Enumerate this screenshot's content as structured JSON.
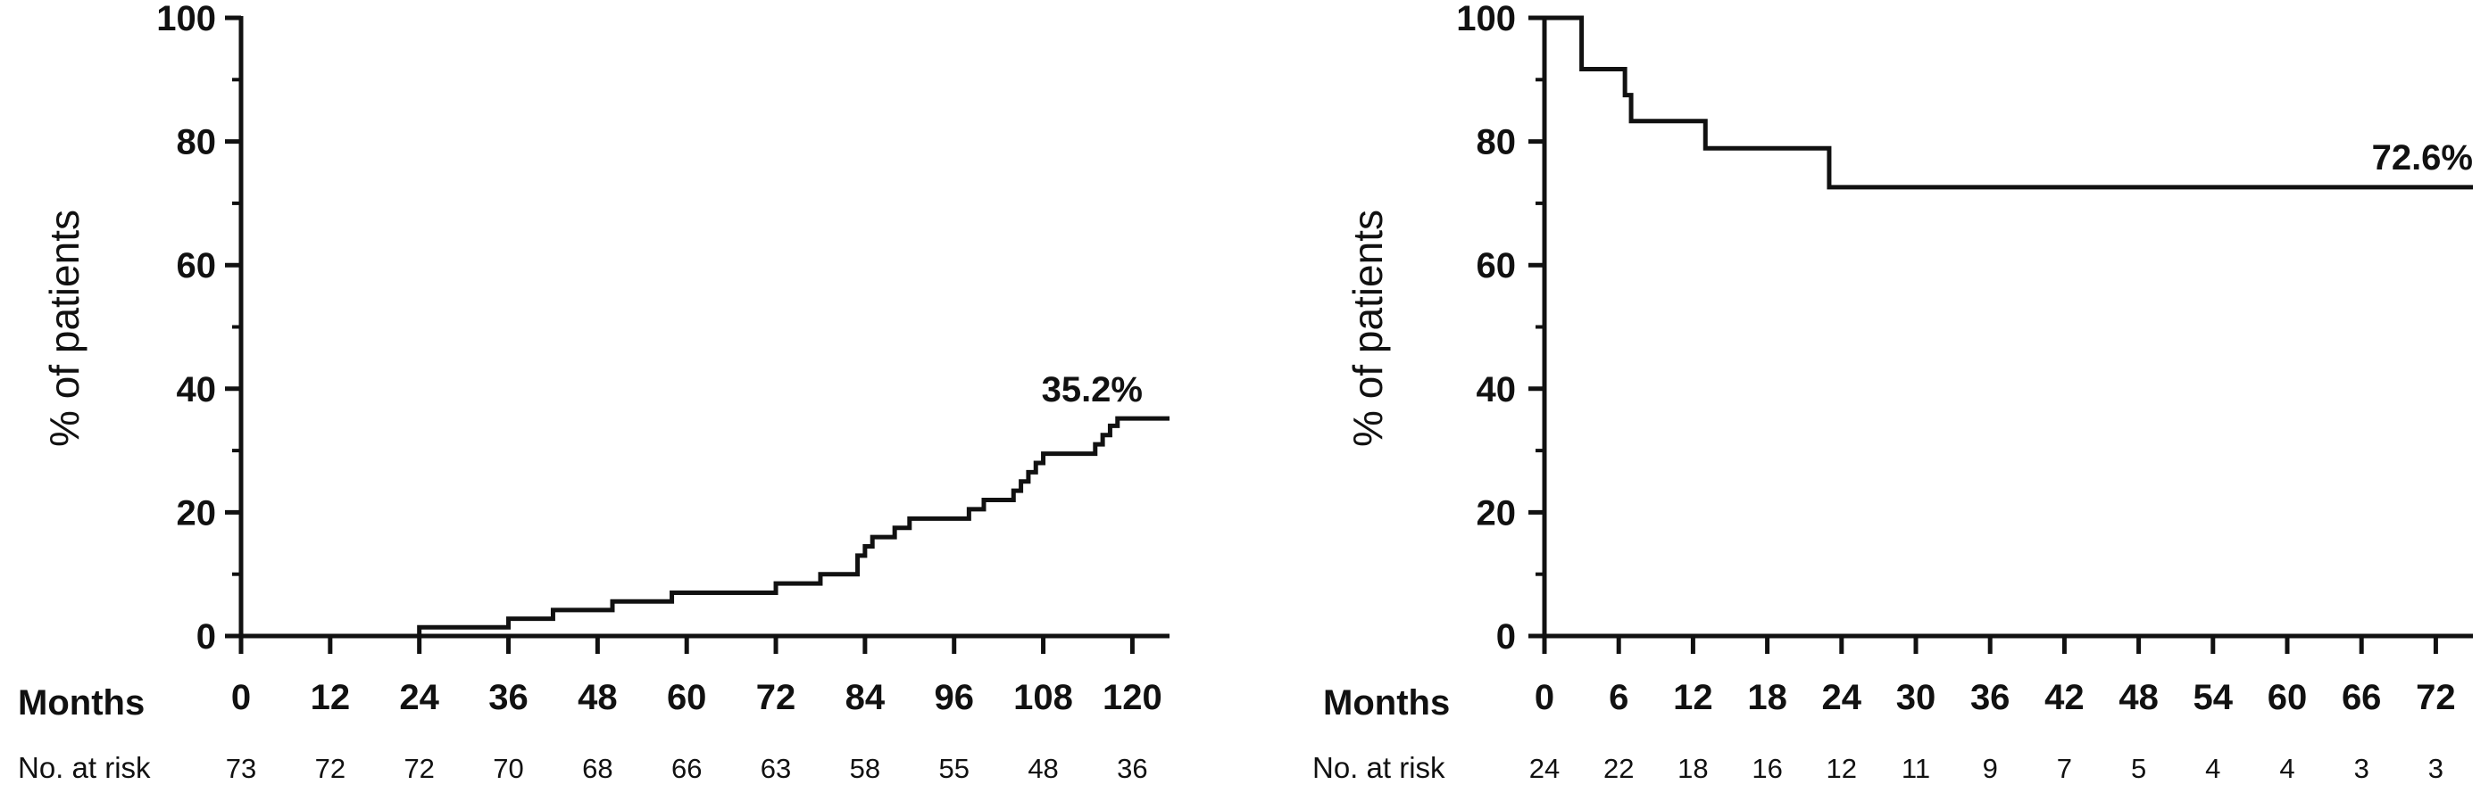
{
  "chart_data": [
    {
      "type": "line",
      "step": true,
      "ylabel": "% of patients",
      "xlabel": "Months",
      "ylim": [
        0,
        100
      ],
      "xlim": [
        0,
        125
      ],
      "y_ticks": [
        0,
        20,
        40,
        60,
        80,
        100
      ],
      "y_minor_ticks": [
        10,
        30,
        50,
        70,
        90
      ],
      "x_ticks": [
        0,
        12,
        24,
        36,
        48,
        60,
        72,
        84,
        96,
        108,
        120
      ],
      "series": [
        {
          "x": [
            0,
            24,
            36,
            42,
            50,
            58,
            72,
            78,
            83,
            84,
            85,
            88,
            90,
            98,
            100,
            104,
            105,
            106,
            107,
            108,
            115,
            116,
            117,
            118,
            125
          ],
          "y": [
            0,
            1.4,
            2.8,
            4.2,
            5.6,
            7.0,
            8.5,
            10.0,
            13.0,
            14.5,
            16.0,
            17.5,
            19.0,
            20.5,
            22.0,
            23.5,
            25.0,
            26.5,
            28.0,
            29.5,
            31.0,
            32.5,
            34.0,
            35.2,
            35.2
          ]
        }
      ],
      "annotation": "35.2%",
      "risk_table": {
        "label": "No. at risk",
        "values": [
          73,
          72,
          72,
          70,
          68,
          66,
          63,
          58,
          55,
          48,
          36
        ]
      },
      "grid": false
    },
    {
      "type": "line",
      "step": true,
      "ylabel": "% of patients",
      "xlabel": "Months",
      "ylim": [
        0,
        100
      ],
      "xlim": [
        0,
        75
      ],
      "y_ticks": [
        0,
        20,
        40,
        60,
        80,
        100
      ],
      "y_minor_ticks": [
        10,
        30,
        50,
        70,
        90
      ],
      "x_ticks": [
        0,
        6,
        12,
        18,
        24,
        30,
        36,
        42,
        48,
        54,
        60,
        66,
        72
      ],
      "series": [
        {
          "x": [
            0,
            3,
            6,
            6.5,
            7,
            13,
            23,
            75
          ],
          "y": [
            100,
            91.7,
            91.7,
            87.5,
            83.3,
            78.9,
            72.6,
            72.6
          ]
        }
      ],
      "annotation": "72.6%",
      "risk_table": {
        "label": "No. at risk",
        "values": [
          24,
          22,
          18,
          16,
          12,
          11,
          9,
          7,
          5,
          4,
          4,
          3,
          3
        ]
      },
      "grid": false
    }
  ]
}
